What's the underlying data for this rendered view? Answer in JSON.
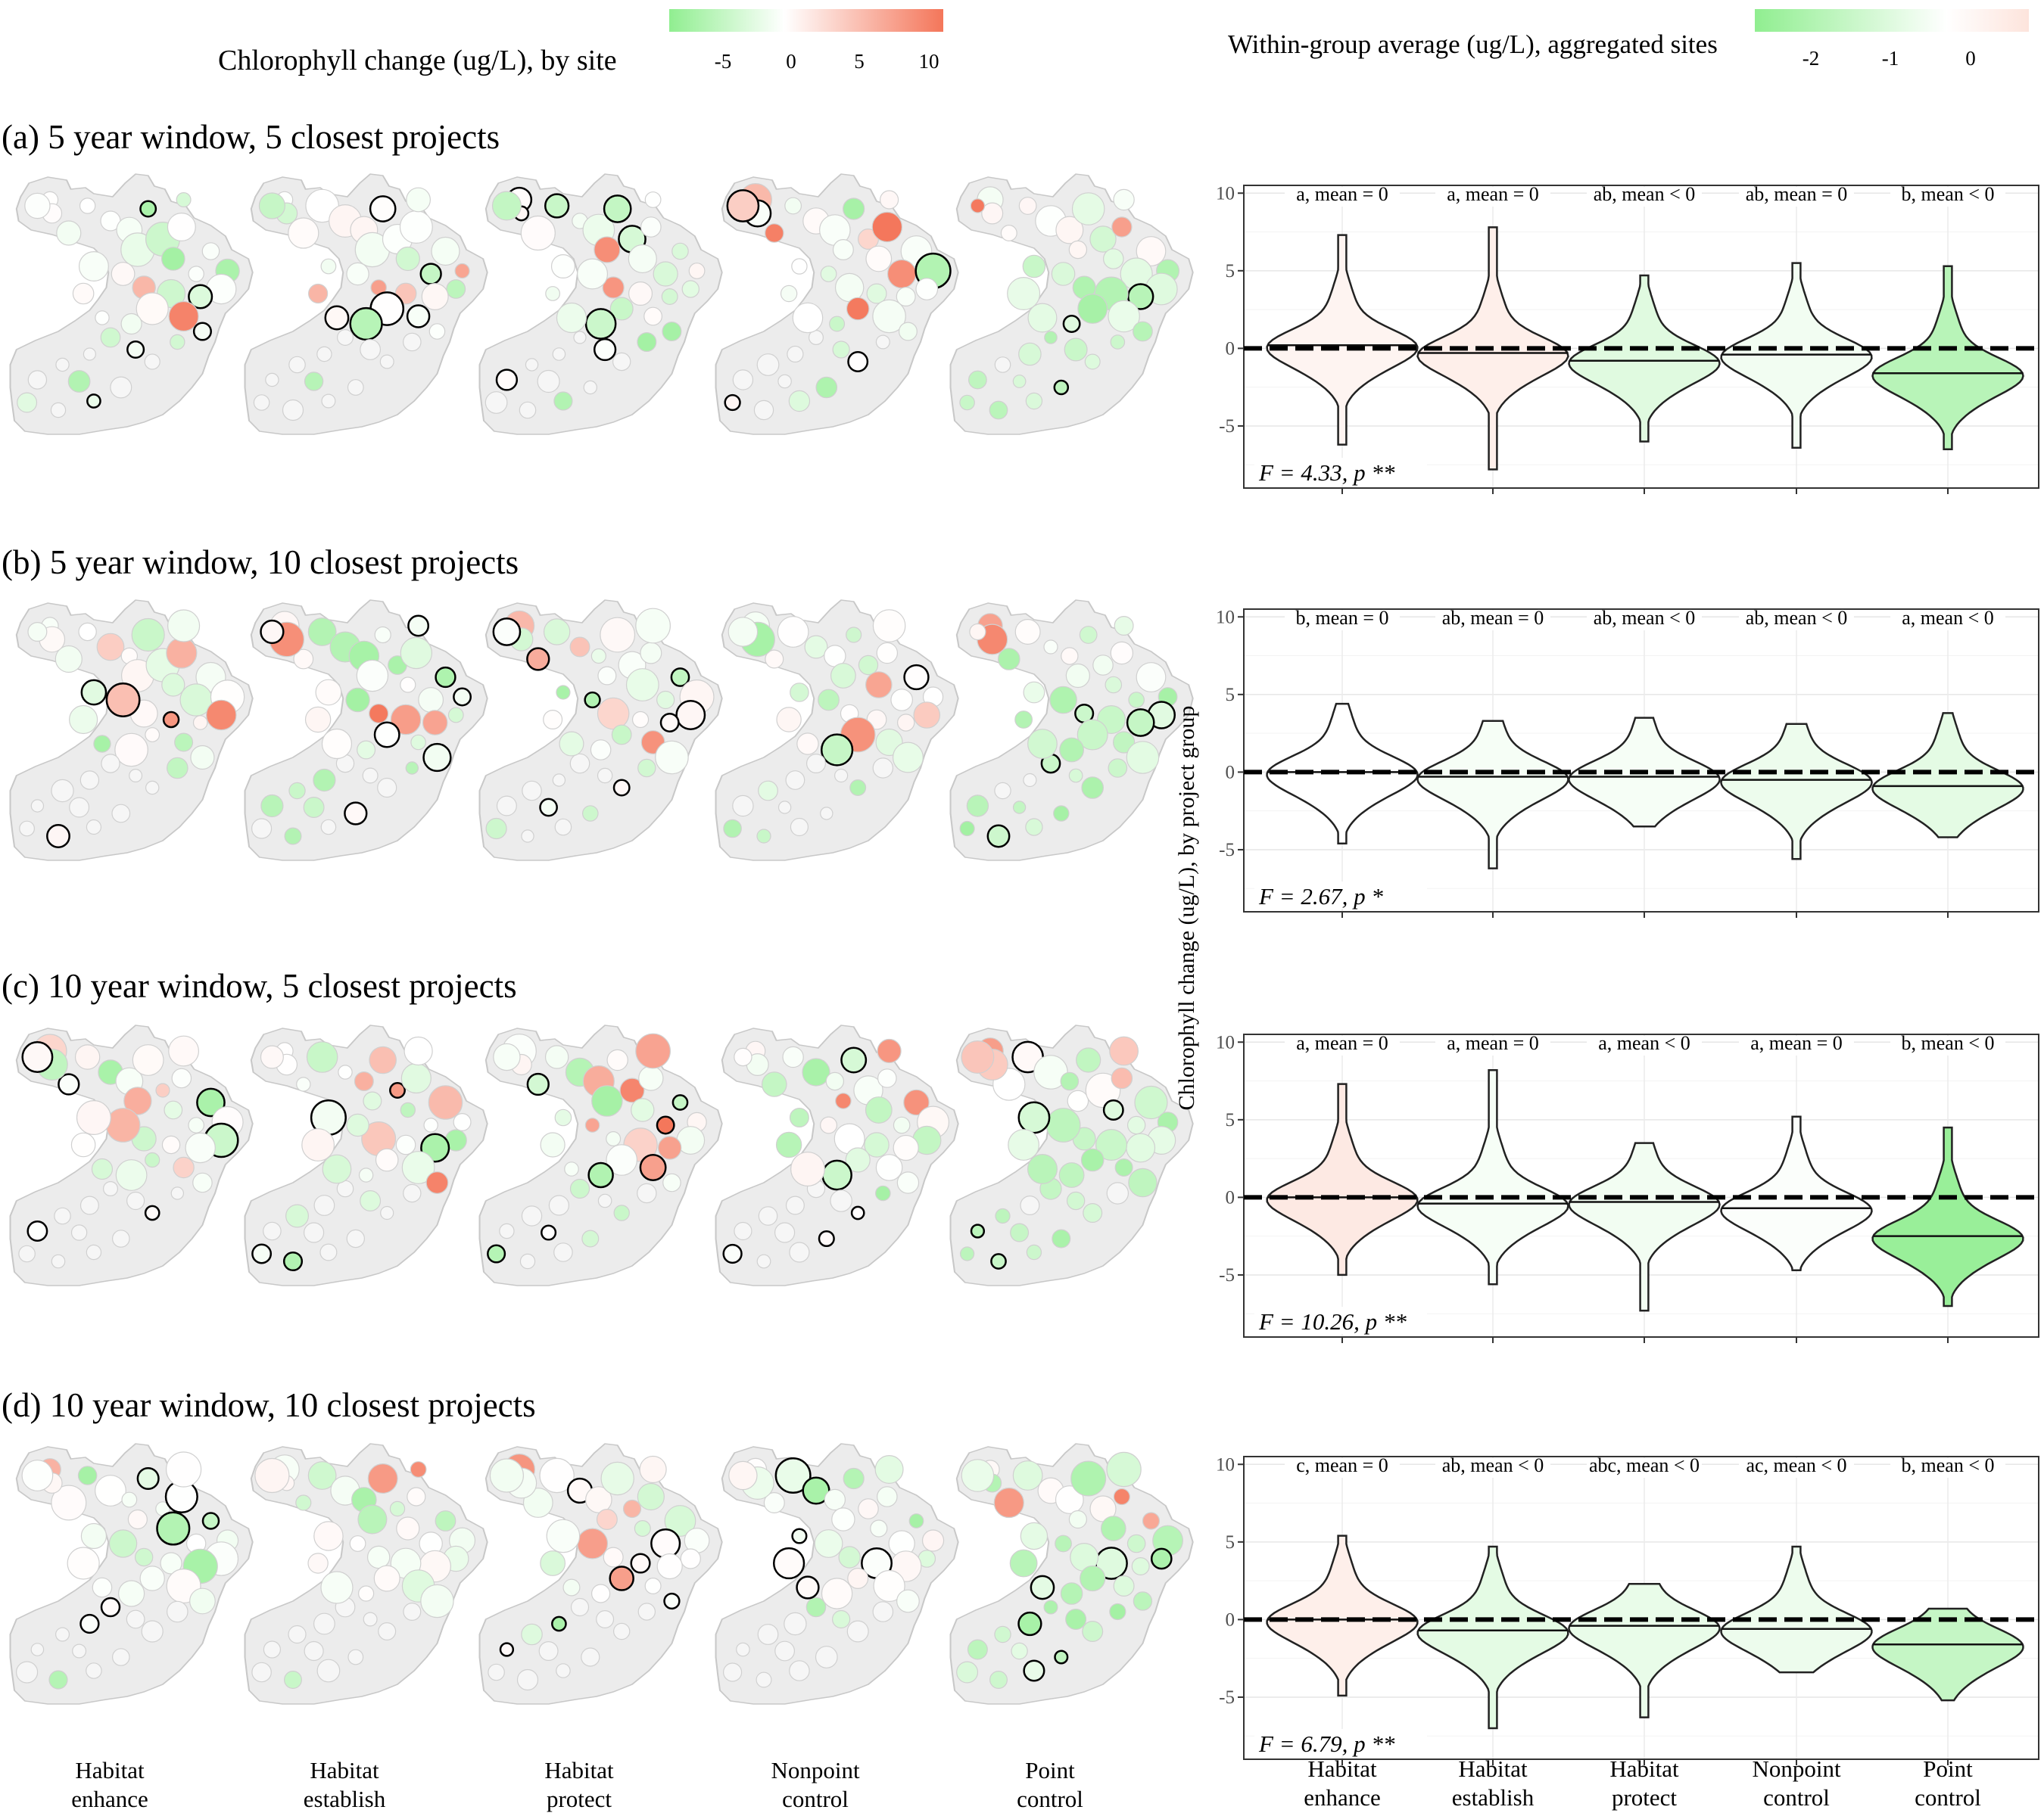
{
  "legend_site": {
    "title": "Chlorophyll change (ug/L), by site",
    "ticks": [
      "-5",
      "0",
      "5",
      "10"
    ],
    "colors": [
      "#90ee90",
      "#ffffff",
      "#f4765a"
    ]
  },
  "legend_group": {
    "title": "Within-group average (ug/L), aggregated sites",
    "ticks": [
      "-2",
      "-1",
      "0"
    ],
    "colors": [
      "#90ee90",
      "#ffffff",
      "#fde4dc"
    ]
  },
  "ylabel": "Chlorophyll change (ug/L), by project group",
  "groups": [
    "Habitat enhance",
    "Habitat establish",
    "Habitat protect",
    "Nonpoint control",
    "Point control"
  ],
  "chart_data": [
    {
      "type": "violin",
      "panel": "(a) 5 year window, 5 closest projects",
      "categories": [
        "Habitat enhance",
        "Habitat establish",
        "Habitat protect",
        "Nonpoint control",
        "Point control"
      ],
      "medians": [
        0.2,
        -0.3,
        -0.8,
        -0.4,
        -1.6
      ],
      "ranges": [
        [
          -6.2,
          7.3
        ],
        [
          -7.8,
          7.8
        ],
        [
          -6.0,
          4.7
        ],
        [
          -6.4,
          5.5
        ],
        [
          -6.5,
          5.3
        ]
      ],
      "group_means": [
        0.2,
        0.3,
        -0.7,
        -0.3,
        -1.6
      ],
      "annotations": [
        "a, mean = 0",
        "a, mean = 0",
        "ab, mean < 0",
        "ab, mean = 0",
        "b, mean < 0"
      ],
      "stat": "F = 4.33, p **",
      "ylim": [
        -9,
        10.5
      ],
      "yticks": [
        -5,
        0,
        5,
        10
      ]
    },
    {
      "type": "violin",
      "panel": "(b) 5 year window, 10 closest projects",
      "categories": [
        "Habitat enhance",
        "Habitat establish",
        "Habitat protect",
        "Nonpoint control",
        "Point control"
      ],
      "medians": [
        0.0,
        -0.3,
        -0.3,
        -0.5,
        -0.9
      ],
      "ranges": [
        [
          -4.6,
          4.4
        ],
        [
          -6.2,
          3.3
        ],
        [
          -3.5,
          3.5
        ],
        [
          -5.6,
          3.1
        ],
        [
          -4.2,
          3.8
        ]
      ],
      "group_means": [
        0.0,
        -0.2,
        -0.2,
        -0.4,
        -0.6
      ],
      "annotations": [
        "b, mean = 0",
        "ab, mean = 0",
        "ab, mean < 0",
        "ab, mean < 0",
        "a, mean < 0"
      ],
      "stat": "F = 2.67, p *",
      "ylim": [
        -9,
        10.5
      ],
      "yticks": [
        -5,
        0,
        5,
        10
      ]
    },
    {
      "type": "violin",
      "panel": "(c) 10 year window, 5 closest projects",
      "categories": [
        "Habitat enhance",
        "Habitat establish",
        "Habitat protect",
        "Nonpoint control",
        "Point control"
      ],
      "medians": [
        0.0,
        -0.4,
        -0.3,
        -0.7,
        -2.5
      ],
      "ranges": [
        [
          -5.0,
          7.3
        ],
        [
          -5.6,
          8.2
        ],
        [
          -7.3,
          3.5
        ],
        [
          -4.7,
          5.2
        ],
        [
          -7.0,
          4.5
        ]
      ],
      "group_means": [
        0.4,
        -0.2,
        -0.3,
        -0.1,
        -2.3
      ],
      "annotations": [
        "a, mean = 0",
        "a, mean = 0",
        "a, mean < 0",
        "a, mean = 0",
        "b, mean < 0"
      ],
      "stat": "F = 10.26, p **",
      "ylim": [
        -9,
        10.5
      ],
      "yticks": [
        -5,
        0,
        5,
        10
      ]
    },
    {
      "type": "violin",
      "panel": "(d) 10 year window, 10 closest projects",
      "categories": [
        "Habitat enhance",
        "Habitat establish",
        "Habitat protect",
        "Nonpoint control",
        "Point control"
      ],
      "medians": [
        0.0,
        -0.7,
        -0.4,
        -0.6,
        -1.6
      ],
      "ranges": [
        [
          -4.9,
          5.4
        ],
        [
          -7.0,
          4.7
        ],
        [
          -6.3,
          2.3
        ],
        [
          -3.4,
          4.7
        ],
        [
          -5.2,
          0.7
        ]
      ],
      "group_means": [
        0.3,
        -0.6,
        -0.5,
        -0.4,
        -1.3
      ],
      "annotations": [
        "c, mean = 0",
        "ab, mean < 0",
        "abc, mean < 0",
        "ac, mean < 0",
        "b, mean < 0"
      ],
      "stat": "F = 6.79, p **",
      "ylim": [
        -9,
        10.5
      ],
      "yticks": [
        -5,
        0,
        5,
        10
      ]
    }
  ]
}
